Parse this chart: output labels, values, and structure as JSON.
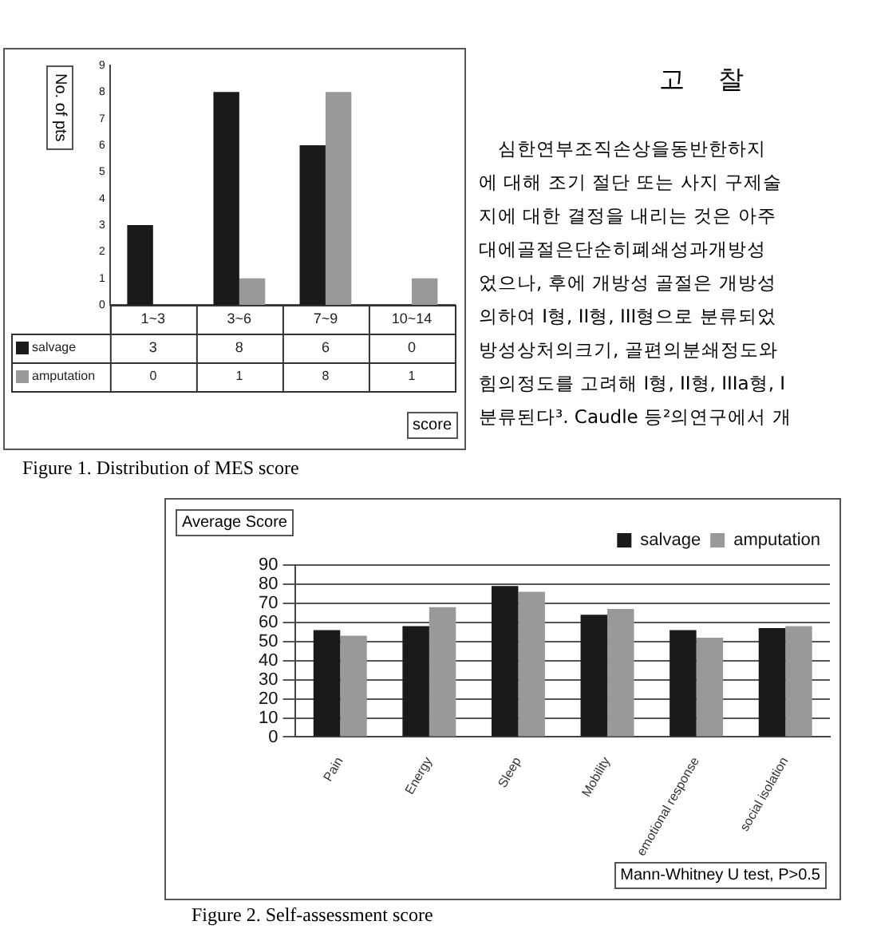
{
  "chart_data": [
    {
      "type": "bar",
      "ylabel": "No. of pts",
      "xlabel": "score",
      "categories": [
        "1~3",
        "3~6",
        "7~9",
        "10~14"
      ],
      "series": [
        {
          "name": "salvage",
          "color": "#1a1a1a",
          "values": [
            3,
            8,
            6,
            0
          ]
        },
        {
          "name": "amputation",
          "color": "#999999",
          "values": [
            0,
            1,
            8,
            1
          ]
        }
      ],
      "ylim": [
        0,
        9
      ],
      "yticks": [
        0,
        1,
        2,
        3,
        4,
        5,
        6,
        7,
        8,
        9
      ],
      "data_labels": true,
      "legend": "bottom left",
      "annotations": [
        "Figure 1. Distribution of MES score"
      ]
    },
    {
      "type": "bar",
      "ylabel": "Average Score",
      "categories": [
        "Pain",
        "Energy",
        "Sleep",
        "Mobility",
        "emotional response",
        "social isolation"
      ],
      "series": [
        {
          "name": "salvage",
          "color": "#1a1a1a",
          "values": [
            56,
            58,
            79,
            64,
            56,
            57
          ]
        },
        {
          "name": "amputation",
          "color": "#999999",
          "values": [
            53,
            68,
            76,
            67,
            52,
            58
          ]
        }
      ],
      "ylim": [
        0,
        90
      ],
      "yticks": [
        0,
        10,
        20,
        30,
        40,
        50,
        60,
        70,
        80,
        90
      ],
      "grid": "y",
      "legend": "top right",
      "annotations": [
        "Mann-Whitney U test, P>0.5",
        "Figure 2. Self-assessment score"
      ]
    },
    {
      "type": "other",
      "title": "고 찰",
      "annotations": [
        "심한연부조직손상을동반한하지",
        "에 대해 조기 절단 또는 사지 구제술",
        "지에 대한 결정을 내리는 것은 아주",
        "대에골절은단순히폐쇄성과개방성",
        "었으나, 후에 개방성 골절은 개방성",
        "의하여 I형, II형, III형으로 분류되었",
        "방성상처의크기, 골편의분쇄정도와",
        "힘의정도를 고려해 I형, II형, IIIa형, I",
        "분류된다³. Caudle 등²의연구에서 개"
      ]
    }
  ]
}
